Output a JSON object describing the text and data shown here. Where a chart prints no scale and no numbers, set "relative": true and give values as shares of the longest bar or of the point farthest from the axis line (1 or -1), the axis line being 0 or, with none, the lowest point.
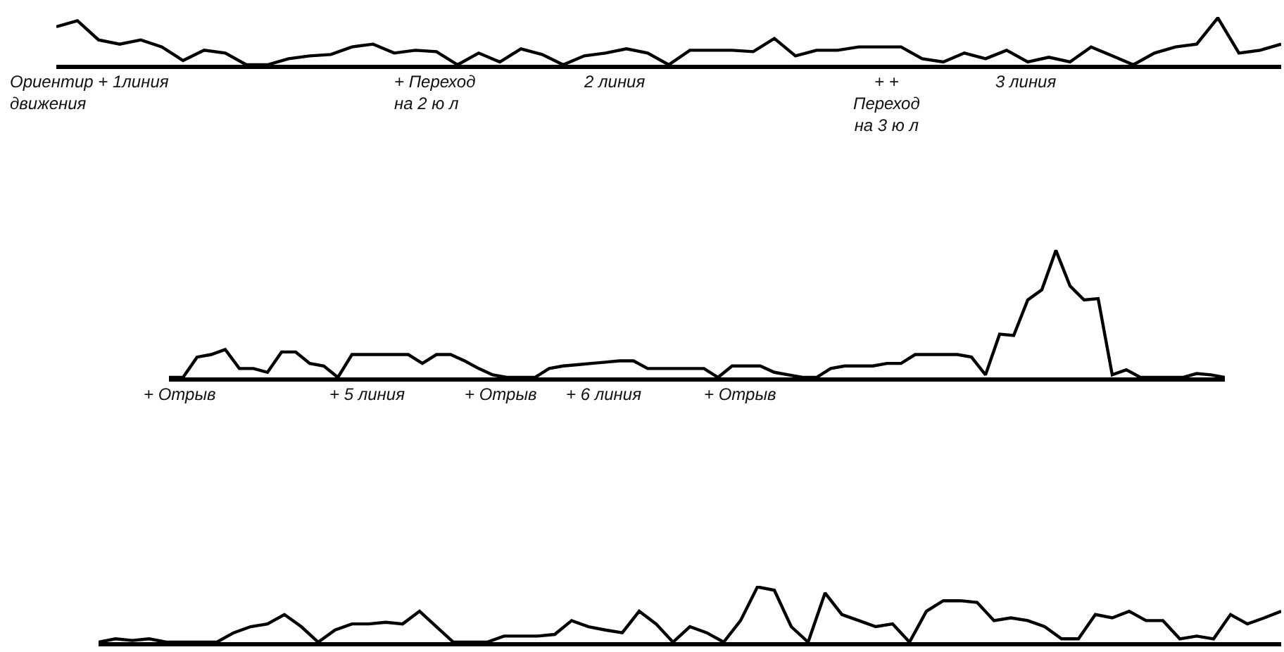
{
  "chart_data": [
    {
      "type": "line",
      "relative": true,
      "marker": "none",
      "line_style": "solid",
      "categories": [
        null,
        null,
        null,
        null,
        null,
        null,
        null,
        null,
        null,
        null,
        null,
        null,
        null,
        null,
        null,
        null,
        null,
        null,
        null,
        null,
        null,
        null,
        null,
        null,
        null,
        null,
        null,
        null,
        null,
        null,
        null,
        null,
        null,
        null,
        null,
        null,
        null,
        null,
        null,
        null,
        null,
        null,
        null,
        null,
        null,
        null,
        null,
        null,
        null,
        null,
        null,
        null,
        null,
        null,
        null,
        null,
        null,
        null,
        null
      ],
      "series": [
        {
          "color": "#000000",
          "values": [
            0.81,
            0.94,
            0.53,
            0.44,
            0.53,
            0.38,
            0.09,
            0.31,
            0.25,
            0,
            0,
            0.13,
            0.19,
            0.22,
            0.38,
            0.44,
            0.25,
            0.31,
            0.28,
            0,
            0.25,
            0.06,
            0.34,
            0.22,
            0,
            0.19,
            0.25,
            0.34,
            0.25,
            0,
            0.31,
            0.31,
            0.31,
            0.28,
            0.56,
            0.19,
            0.31,
            0.31,
            0.38,
            0.38,
            0.38,
            0.13,
            0.06,
            0.25,
            0.13,
            0.31,
            0.06,
            0.16,
            0.06,
            0.38,
            0.19,
            0,
            0.25,
            0.38,
            0.44,
            1,
            0.25,
            0.31,
            0.44
          ]
        }
      ],
      "annotations": [
        "Ориентир + 1линия\nдвижения",
        "+ Переход\nна 2 ю л",
        "2 линия",
        "+ +\nПереход\nна 3 ю л",
        "3 линия"
      ]
    },
    {
      "type": "line",
      "relative": true,
      "marker": "none",
      "line_style": "solid",
      "categories": [
        null,
        null,
        null,
        null,
        null,
        null,
        null,
        null,
        null,
        null,
        null,
        null,
        null,
        null,
        null,
        null,
        null,
        null,
        null,
        null,
        null,
        null,
        null,
        null,
        null,
        null,
        null,
        null,
        null,
        null,
        null,
        null,
        null,
        null,
        null,
        null,
        null,
        null,
        null,
        null,
        null,
        null,
        null,
        null,
        null,
        null,
        null,
        null,
        null,
        null,
        null,
        null,
        null,
        null,
        null,
        null,
        null,
        null,
        null,
        null,
        null,
        null,
        null,
        null,
        null,
        null,
        null,
        null,
        null,
        null,
        null,
        null,
        null,
        null,
        null,
        null
      ],
      "series": [
        {
          "color": "#000000",
          "values": [
            0,
            0,
            0.16,
            0.18,
            0.22,
            0.07,
            0.07,
            0.04,
            0.2,
            0.2,
            0.11,
            0.09,
            0,
            0.18,
            0.18,
            0.18,
            0.18,
            0.18,
            0.11,
            0.18,
            0.18,
            0.13,
            0.07,
            0.02,
            0,
            0,
            0,
            0.07,
            0.09,
            0.1,
            0.11,
            0.12,
            0.13,
            0.13,
            0.07,
            0.07,
            0.07,
            0.07,
            0.07,
            0,
            0.09,
            0.09,
            0.09,
            0.04,
            0.02,
            0,
            0,
            0.07,
            0.09,
            0.09,
            0.09,
            0.11,
            0.11,
            0.18,
            0.18,
            0.18,
            0.18,
            0.16,
            0.02,
            0.34,
            0.33,
            0.61,
            0.69,
            1,
            0.72,
            0.61,
            0.62,
            0.02,
            0.06,
            0,
            0,
            0,
            0,
            0.03,
            0.02,
            0
          ]
        }
      ],
      "annotations": [
        "+ Отрыв",
        "+ 5 линия",
        "+ Отрыв",
        "+ 6 линия",
        "+ Отрыв"
      ]
    },
    {
      "type": "line",
      "relative": true,
      "marker": "none",
      "line_style": "solid",
      "categories": [
        null,
        null,
        null,
        null,
        null,
        null,
        null,
        null,
        null,
        null,
        null,
        null,
        null,
        null,
        null,
        null,
        null,
        null,
        null,
        null,
        null,
        null,
        null,
        null,
        null,
        null,
        null,
        null,
        null,
        null,
        null,
        null,
        null,
        null,
        null,
        null,
        null,
        null,
        null,
        null,
        null,
        null,
        null,
        null,
        null,
        null,
        null,
        null,
        null,
        null,
        null,
        null,
        null,
        null,
        null,
        null,
        null,
        null,
        null,
        null,
        null,
        null,
        null,
        null,
        null,
        null,
        null,
        null,
        null,
        null,
        null
      ],
      "series": [
        {
          "color": "#000000",
          "values": [
            0,
            0.06,
            0.03,
            0.06,
            0,
            0,
            0,
            0,
            0.17,
            0.28,
            0.33,
            0.5,
            0.28,
            0,
            0.22,
            0.33,
            0.33,
            0.36,
            0.33,
            0.56,
            0.28,
            0,
            0,
            0,
            0.11,
            0.11,
            0.11,
            0.14,
            0.39,
            0.28,
            0.22,
            0.17,
            0.56,
            0.33,
            0,
            0.28,
            0.17,
            0,
            0.39,
            1,
            0.94,
            0.28,
            0,
            0.89,
            0.5,
            0.39,
            0.28,
            0.33,
            0,
            0.56,
            0.75,
            0.75,
            0.72,
            0.39,
            0.44,
            0.39,
            0.28,
            0.06,
            0.06,
            0.5,
            0.44,
            0.56,
            0.39,
            0.39,
            0.06,
            0.11,
            0.06,
            0.5,
            0.33,
            0.44,
            0.56
          ]
        }
      ]
    }
  ]
}
